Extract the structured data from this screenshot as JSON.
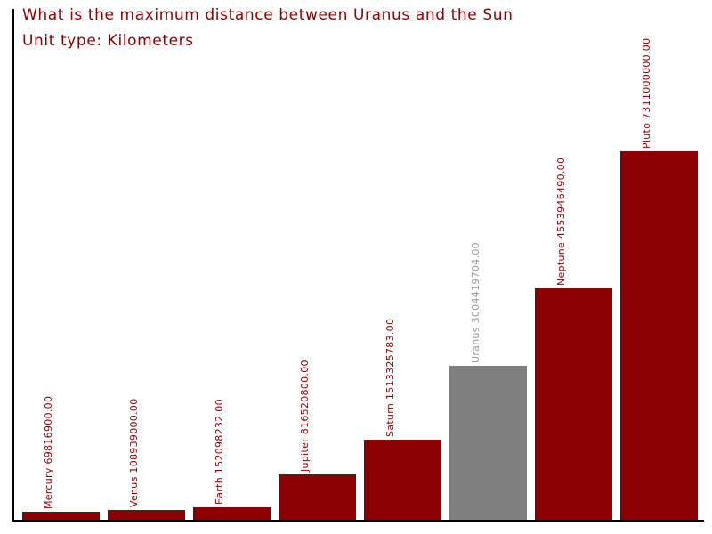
{
  "title": {
    "line1": "What is the maximum distance between Uranus and the Sun",
    "line2": "Unit type: Kilometers"
  },
  "colors": {
    "background": "#ffffff",
    "title": "#8b0000",
    "axis": "#000000",
    "bar": "#8b0000",
    "bar_highlight": "#7f7f7f",
    "bar_label": "#8b0000",
    "bar_label_highlight": "#999999"
  },
  "chart_data": {
    "type": "bar",
    "title": "What is the maximum distance between Uranus and the Sun",
    "subtitle": "Unit type: Kilometers",
    "unit": "Kilometers",
    "categories": [
      "Mercury",
      "Venus",
      "Earth",
      "Jupiter",
      "Saturn",
      "Uranus",
      "Neptune",
      "Pluto"
    ],
    "values": [
      69816900.0,
      108939000.0,
      152098232.0,
      816520800.0,
      1513325783.0,
      3004419704.0,
      4553946490.0,
      7311000000.0
    ],
    "bar_labels": [
      "Mercury 69816900.00",
      "Venus 108939000.00",
      "Earth 152098232.00",
      "Jupiter 816520800.00",
      "Saturn 1513325783.00",
      "Uranus 3004419704.00",
      "Neptune 4553946490.00",
      "Pluto 7311000000.00"
    ],
    "highlighted_category": "Uranus",
    "ylim": [
      0,
      7311000000
    ],
    "xlabel": "",
    "ylabel": "",
    "grid": false,
    "legend": false,
    "bar_label_rotation_deg": 90,
    "visible_spines": [
      "left",
      "bottom"
    ]
  }
}
